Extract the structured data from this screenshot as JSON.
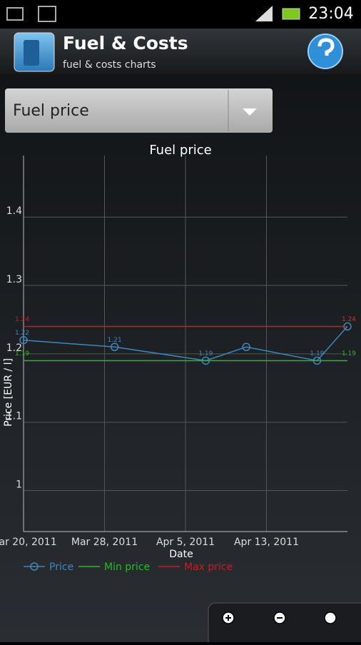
{
  "status_bar": {
    "time": "23:04"
  },
  "header": {
    "title": "Fuel & Costs",
    "subtitle": "fuel & costs charts"
  },
  "dropdown": {
    "selected": "Fuel price"
  },
  "chart_data": {
    "type": "line",
    "title": "Fuel price",
    "x_label": "Date",
    "y_label": "Price [EUR / l]",
    "x": [
      "2011-03-20",
      "2011-03-29",
      "2011-04-07",
      "2011-04-11",
      "2011-04-18",
      "2011-04-21"
    ],
    "xlim": [
      "2011-03-20",
      "2011-04-21"
    ],
    "xticks": [
      {
        "value": "2011-03-20",
        "label": "Mar 20, 2011"
      },
      {
        "value": "2011-03-28",
        "label": "Mar 28, 2011"
      },
      {
        "value": "2011-04-05",
        "label": "Apr 5, 2011"
      },
      {
        "value": "2011-04-13",
        "label": "Apr 13, 2011"
      }
    ],
    "ylim": [
      0.94,
      1.49
    ],
    "yticks": [
      1,
      1.1,
      1.2,
      1.3,
      1.4
    ],
    "grid": true,
    "series": [
      {
        "name": "Price",
        "color": "#3f86bd",
        "values": [
          1.22,
          1.21,
          1.19,
          1.21,
          1.19,
          1.24
        ],
        "value_labels": [
          "1.22",
          "1.21",
          "1.19",
          null,
          "1.19",
          "1.24"
        ],
        "markers": true
      },
      {
        "name": "Min price",
        "color": "#1fbf1f",
        "values": [
          1.19,
          1.19,
          1.19,
          1.19,
          1.19,
          1.19
        ],
        "value_labels": [
          "1.19",
          null,
          null,
          null,
          null,
          "1.19"
        ],
        "markers": false
      },
      {
        "name": "Max price",
        "color": "#c81e1e",
        "values": [
          1.24,
          1.24,
          1.24,
          1.24,
          1.24,
          1.24
        ],
        "value_labels": [
          "1.24",
          null,
          null,
          null,
          null,
          "1.24"
        ],
        "markers": false
      }
    ]
  }
}
